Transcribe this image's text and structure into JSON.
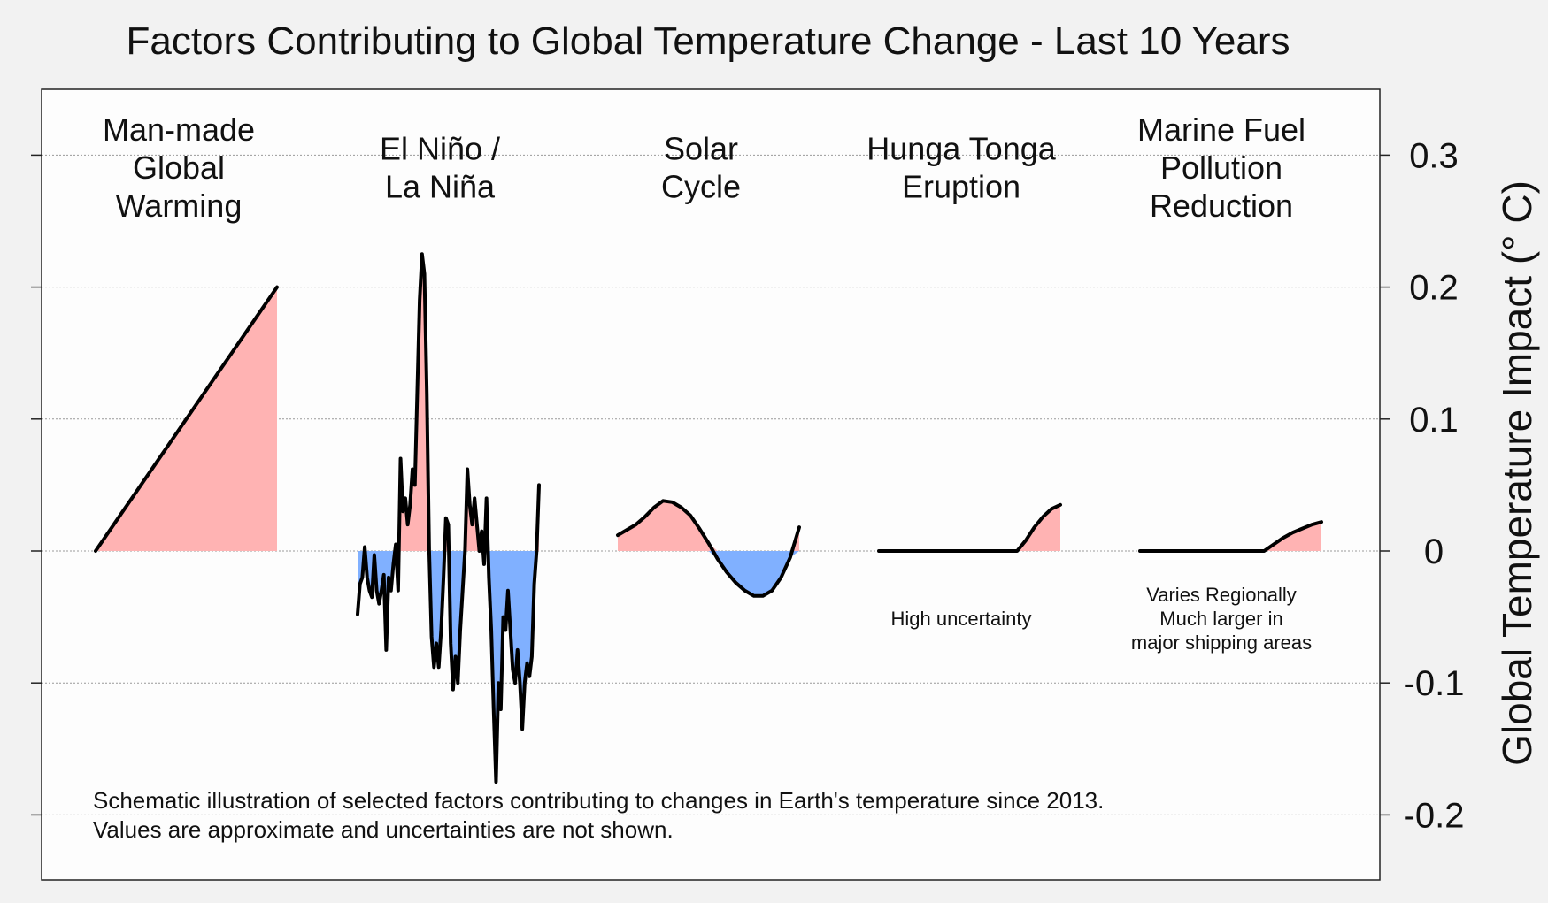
{
  "chart_data": {
    "type": "area",
    "title": "Factors Contributing to Global Temperature Change - Last 10 Years",
    "ylabel": "Global Temperature Impact (° C)",
    "ylim": [
      -0.25,
      0.35
    ],
    "yticks": [
      0.3,
      0.2,
      0.1,
      0,
      -0.1,
      -0.2
    ],
    "ytick_labels": [
      "0.3",
      "0.2",
      "0.1",
      "0",
      "-0.1",
      "-0.2"
    ],
    "grid": true,
    "colors": {
      "positive": "#ffb3b3",
      "negative": "#80b0ff",
      "line": "#000000"
    },
    "panels": [
      {
        "name_lines": [
          "Man-made",
          "Global",
          "Warming"
        ],
        "note_lines": [],
        "values": [
          0,
          0.2
        ]
      },
      {
        "name_lines": [
          "El Niño /",
          "La Niña"
        ],
        "note_lines": [],
        "values": [
          -0.048,
          -0.025,
          -0.02,
          0.003,
          -0.02,
          -0.03,
          -0.035,
          -0.003,
          -0.03,
          -0.04,
          -0.03,
          -0.018,
          -0.075,
          -0.02,
          -0.03,
          -0.01,
          0.005,
          -0.03,
          0.07,
          0.03,
          0.04,
          0.02,
          0.035,
          0.062,
          0.05,
          0.12,
          0.19,
          0.225,
          0.21,
          0.12,
          0.0,
          -0.065,
          -0.088,
          -0.07,
          -0.088,
          -0.06,
          -0.02,
          0.025,
          0.02,
          -0.07,
          -0.105,
          -0.08,
          -0.1,
          -0.06,
          -0.03,
          0.0,
          0.062,
          0.035,
          0.02,
          0.04,
          0.02,
          0.0,
          0.015,
          -0.01,
          0.04,
          -0.02,
          -0.06,
          -0.12,
          -0.175,
          -0.1,
          -0.12,
          -0.05,
          -0.06,
          -0.03,
          -0.06,
          -0.09,
          -0.1,
          -0.075,
          -0.1,
          -0.135,
          -0.1,
          -0.085,
          -0.095,
          -0.08,
          -0.025,
          0.0,
          0.05
        ]
      },
      {
        "name_lines": [
          "Solar",
          "Cycle"
        ],
        "note_lines": [],
        "values": [
          0.012,
          0.016,
          0.02,
          0.026,
          0.033,
          0.038,
          0.037,
          0.033,
          0.027,
          0.017,
          0.006,
          -0.006,
          -0.016,
          -0.024,
          -0.03,
          -0.034,
          -0.034,
          -0.03,
          -0.02,
          -0.005,
          0.018
        ]
      },
      {
        "name_lines": [
          "Hunga Tonga",
          "Eruption"
        ],
        "note_lines": [
          "High uncertainty"
        ],
        "values": [
          0,
          0,
          0,
          0,
          0,
          0,
          0,
          0,
          0,
          0,
          0,
          0,
          0,
          0,
          0,
          0,
          0,
          0.008,
          0.018,
          0.026,
          0.032,
          0.035
        ]
      },
      {
        "name_lines": [
          "Marine Fuel",
          "Pollution",
          "Reduction"
        ],
        "note_lines": [
          "Varies Regionally",
          "Much larger in",
          "major shipping areas"
        ],
        "values": [
          0,
          0,
          0,
          0,
          0,
          0,
          0,
          0,
          0,
          0,
          0,
          0,
          0,
          0,
          0.005,
          0.01,
          0.014,
          0.017,
          0.02,
          0.022
        ]
      }
    ],
    "caption_lines": [
      "Schematic illustration of selected factors contributing to changes in Earth's temperature since 2013.",
      "Values are approximate and uncertainties are not shown."
    ]
  }
}
